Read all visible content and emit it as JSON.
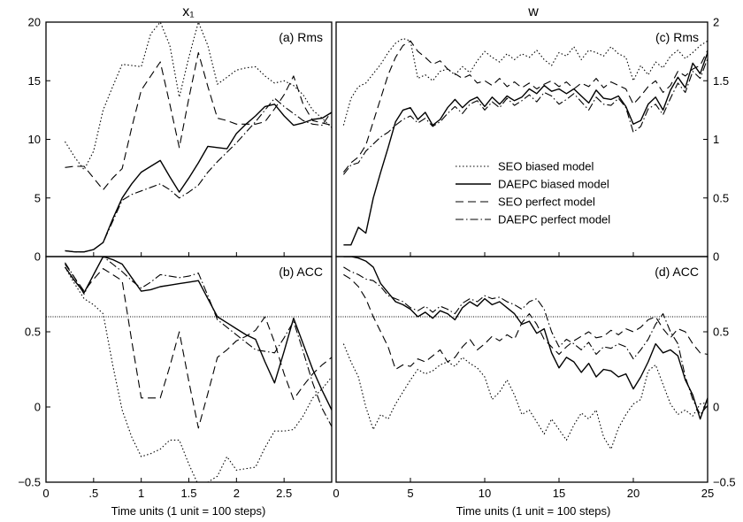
{
  "figure": {
    "left_title": "x₁",
    "right_title": "w",
    "xlabel": "Time units (1 unit = 100 steps)"
  },
  "legend": [
    {
      "name": "SEO biased model",
      "style": "dotted"
    },
    {
      "name": "DAEPC biased model",
      "style": "solid"
    },
    {
      "name": "SEO perfect model",
      "style": "dashed"
    },
    {
      "name": "DAEPC perfect model",
      "style": "dashdot"
    }
  ],
  "chart_data": [
    {
      "type": "line",
      "panel": "(a) Rms",
      "xlim": [
        0,
        3
      ],
      "ylim": [
        0,
        20
      ],
      "xticks": [
        "0",
        ".5",
        "1",
        "1.5",
        "2",
        "2.5"
      ],
      "yticks": [
        "0",
        "5",
        "10",
        "15",
        "20"
      ],
      "x": [
        0.2,
        0.3,
        0.4,
        0.5,
        0.6,
        0.7,
        0.8,
        0.9,
        1.0,
        1.1,
        1.2,
        1.3,
        1.4,
        1.5,
        1.6,
        1.7,
        1.8,
        1.9,
        2.0,
        2.1,
        2.2,
        2.3,
        2.4,
        2.5,
        2.6,
        2.7,
        2.8,
        2.9,
        3.0
      ],
      "series": [
        {
          "name": "SEO biased model",
          "values": [
            9.8,
            8.5,
            7.4,
            9.0,
            12.5,
            14.5,
            16.4,
            16.3,
            16.2,
            19.0,
            20.0,
            18.0,
            13.6,
            17.0,
            20.0,
            18.0,
            14.7,
            15.3,
            15.9,
            16.1,
            16.2,
            15.4,
            14.8,
            15.0,
            14.6,
            13.8,
            12.5,
            11.8,
            11.0
          ]
        },
        {
          "name": "DAEPC biased model",
          "values": [
            0.5,
            0.4,
            0.4,
            0.6,
            1.2,
            3.2,
            5.0,
            6.2,
            7.2,
            7.7,
            8.2,
            6.8,
            5.5,
            6.7,
            8.0,
            9.4,
            9.3,
            9.2,
            10.5,
            11.3,
            12.0,
            12.8,
            13.0,
            12.0,
            11.2,
            11.4,
            11.7,
            11.8,
            12.3
          ]
        },
        {
          "name": "SEO perfect model",
          "values": [
            7.6,
            7.7,
            7.7,
            6.7,
            5.7,
            6.7,
            7.5,
            11.0,
            14.2,
            15.4,
            16.6,
            13.0,
            9.3,
            13.5,
            17.4,
            14.5,
            11.8,
            11.6,
            11.3,
            11.3,
            11.3,
            11.5,
            12.6,
            13.8,
            15.4,
            13.0,
            11.6,
            11.4,
            11.2
          ]
        },
        {
          "name": "DAEPC perfect model",
          "values": [
            0.5,
            0.4,
            0.4,
            0.6,
            1.2,
            3.0,
            4.8,
            5.3,
            5.6,
            5.9,
            6.2,
            5.7,
            5.0,
            5.5,
            6.1,
            7.2,
            8.1,
            8.9,
            9.7,
            10.6,
            11.5,
            12.5,
            13.5,
            12.8,
            12.2,
            11.6,
            11.3,
            11.2,
            12.4
          ]
        }
      ]
    },
    {
      "type": "line",
      "panel": "(b) ACC",
      "xlim": [
        0,
        3
      ],
      "ylim": [
        -0.5,
        1.0
      ],
      "xticks": [
        "0",
        ".5",
        "1",
        "1.5",
        "2",
        "2.5"
      ],
      "yticks": [
        "−0.5",
        "0",
        "0.5"
      ],
      "threshold": 0.6,
      "x": [
        0.2,
        0.3,
        0.4,
        0.5,
        0.6,
        0.7,
        0.8,
        0.9,
        1.0,
        1.1,
        1.2,
        1.3,
        1.4,
        1.5,
        1.6,
        1.7,
        1.8,
        1.9,
        2.0,
        2.1,
        2.2,
        2.3,
        2.4,
        2.5,
        2.6,
        2.7,
        2.8,
        2.9,
        3.0
      ],
      "series": [
        {
          "name": "SEO biased model",
          "values": [
            0.93,
            0.82,
            0.72,
            0.68,
            0.62,
            0.28,
            -0.02,
            -0.2,
            -0.33,
            -0.31,
            -0.28,
            -0.22,
            -0.22,
            -0.38,
            -0.52,
            -0.5,
            -0.46,
            -0.33,
            -0.42,
            -0.41,
            -0.4,
            -0.27,
            -0.16,
            -0.16,
            -0.15,
            -0.06,
            0.06,
            0.12,
            0.2
          ]
        },
        {
          "name": "DAEPC biased model",
          "values": [
            0.93,
            0.84,
            0.76,
            0.88,
            1.0,
            0.98,
            0.95,
            0.86,
            0.77,
            0.78,
            0.8,
            0.81,
            0.82,
            0.83,
            0.84,
            0.72,
            0.6,
            0.56,
            0.52,
            0.48,
            0.45,
            0.3,
            0.16,
            0.37,
            0.59,
            0.42,
            0.25,
            0.11,
            -0.02
          ]
        },
        {
          "name": "SEO perfect model",
          "values": [
            0.95,
            0.86,
            0.77,
            0.85,
            0.92,
            0.88,
            0.84,
            0.44,
            0.06,
            0.06,
            0.06,
            0.27,
            0.5,
            0.17,
            -0.14,
            0.09,
            0.33,
            0.38,
            0.44,
            0.47,
            0.51,
            0.6,
            0.43,
            0.22,
            0.05,
            0.14,
            0.22,
            0.28,
            0.33
          ]
        },
        {
          "name": "DAEPC perfect model",
          "values": [
            0.96,
            0.86,
            0.75,
            0.88,
            1.0,
            0.95,
            0.9,
            0.84,
            0.79,
            0.83,
            0.88,
            0.87,
            0.86,
            0.87,
            0.89,
            0.74,
            0.58,
            0.53,
            0.48,
            0.43,
            0.38,
            0.37,
            0.36,
            0.46,
            0.57,
            0.37,
            0.16,
            -0.01,
            -0.13
          ]
        }
      ]
    },
    {
      "type": "line",
      "panel": "(c) Rms",
      "xlim": [
        0,
        25
      ],
      "ylim": [
        0,
        2
      ],
      "xticks": [
        "0",
        "5",
        "10",
        "15",
        "20",
        "25"
      ],
      "yticks": [
        "0",
        "0.5",
        "1",
        "1.5",
        "2"
      ],
      "x": [
        0.5,
        1,
        1.5,
        2,
        2.5,
        3,
        3.5,
        4,
        4.5,
        5,
        5.5,
        6,
        6.5,
        7,
        7.5,
        8,
        8.5,
        9,
        9.5,
        10,
        10.5,
        11,
        11.5,
        12,
        12.5,
        13,
        13.5,
        14,
        14.5,
        15,
        15.5,
        16,
        16.5,
        17,
        17.5,
        18,
        18.5,
        19,
        19.5,
        20,
        20.5,
        21,
        21.5,
        22,
        22.5,
        23,
        23.5,
        24,
        24.5,
        25
      ],
      "series": [
        {
          "name": "SEO biased model",
          "values": [
            1.12,
            1.35,
            1.45,
            1.48,
            1.56,
            1.64,
            1.74,
            1.82,
            1.86,
            1.84,
            1.52,
            1.55,
            1.5,
            1.58,
            1.6,
            1.55,
            1.62,
            1.57,
            1.67,
            1.75,
            1.7,
            1.66,
            1.73,
            1.68,
            1.73,
            1.7,
            1.76,
            1.68,
            1.63,
            1.74,
            1.71,
            1.79,
            1.68,
            1.76,
            1.74,
            1.71,
            1.79,
            1.73,
            1.7,
            1.5,
            1.63,
            1.55,
            1.66,
            1.61,
            1.71,
            1.76,
            1.69,
            1.74,
            1.8,
            1.84
          ]
        },
        {
          "name": "DAEPC biased model",
          "values": [
            0.1,
            0.1,
            0.25,
            0.2,
            0.5,
            0.72,
            0.93,
            1.15,
            1.25,
            1.27,
            1.17,
            1.23,
            1.12,
            1.17,
            1.27,
            1.34,
            1.27,
            1.33,
            1.36,
            1.28,
            1.36,
            1.3,
            1.37,
            1.33,
            1.36,
            1.43,
            1.39,
            1.46,
            1.41,
            1.43,
            1.39,
            1.43,
            1.37,
            1.31,
            1.42,
            1.35,
            1.34,
            1.37,
            1.28,
            1.13,
            1.16,
            1.3,
            1.36,
            1.25,
            1.42,
            1.53,
            1.44,
            1.65,
            1.56,
            1.74
          ]
        },
        {
          "name": "SEO perfect model",
          "values": [
            0.72,
            0.8,
            0.85,
            0.95,
            1.15,
            1.35,
            1.55,
            1.7,
            1.8,
            1.84,
            1.75,
            1.7,
            1.64,
            1.67,
            1.6,
            1.56,
            1.52,
            1.55,
            1.48,
            1.5,
            1.46,
            1.52,
            1.45,
            1.49,
            1.44,
            1.48,
            1.43,
            1.47,
            1.5,
            1.45,
            1.49,
            1.43,
            1.48,
            1.45,
            1.52,
            1.44,
            1.49,
            1.46,
            1.43,
            1.3,
            1.37,
            1.45,
            1.5,
            1.4,
            1.46,
            1.58,
            1.54,
            1.6,
            1.63,
            1.76
          ]
        },
        {
          "name": "DAEPC perfect model",
          "values": [
            0.7,
            0.78,
            0.8,
            0.9,
            0.96,
            1.02,
            1.06,
            1.12,
            1.17,
            1.2,
            1.14,
            1.18,
            1.11,
            1.15,
            1.22,
            1.28,
            1.22,
            1.3,
            1.33,
            1.25,
            1.32,
            1.27,
            1.35,
            1.29,
            1.33,
            1.38,
            1.32,
            1.4,
            1.37,
            1.3,
            1.34,
            1.39,
            1.32,
            1.25,
            1.36,
            1.3,
            1.29,
            1.35,
            1.27,
            1.06,
            1.11,
            1.26,
            1.3,
            1.21,
            1.35,
            1.48,
            1.4,
            1.58,
            1.52,
            1.69
          ]
        }
      ]
    },
    {
      "type": "line",
      "panel": "(d) ACC",
      "xlim": [
        0,
        25
      ],
      "ylim": [
        -0.5,
        1.0
      ],
      "xticks": [
        "0",
        "5",
        "10",
        "15",
        "20",
        "25"
      ],
      "yticks": [
        "−0.5",
        "0",
        "0.5"
      ],
      "threshold": 0.6,
      "x": [
        0.5,
        1,
        1.5,
        2,
        2.5,
        3,
        3.5,
        4,
        4.5,
        5,
        5.5,
        6,
        6.5,
        7,
        7.5,
        8,
        8.5,
        9,
        9.5,
        10,
        10.5,
        11,
        11.5,
        12,
        12.5,
        13,
        13.5,
        14,
        14.5,
        15,
        15.5,
        16,
        16.5,
        17,
        17.5,
        18,
        18.5,
        19,
        19.5,
        20,
        20.5,
        21,
        21.5,
        22,
        22.5,
        23,
        23.5,
        24,
        24.5,
        25
      ],
      "series": [
        {
          "name": "SEO biased model",
          "values": [
            0.42,
            0.3,
            0.2,
            0.0,
            -0.15,
            -0.05,
            -0.08,
            0.02,
            0.1,
            0.18,
            0.25,
            0.22,
            0.24,
            0.28,
            0.3,
            0.27,
            0.33,
            0.29,
            0.26,
            0.2,
            0.05,
            0.1,
            0.18,
            0.08,
            -0.05,
            -0.02,
            -0.1,
            -0.18,
            -0.08,
            -0.15,
            -0.22,
            -0.12,
            -0.04,
            -0.08,
            -0.02,
            -0.2,
            -0.28,
            -0.14,
            -0.05,
            0.02,
            0.05,
            0.24,
            0.28,
            0.15,
            0.02,
            -0.05,
            -0.02,
            -0.06,
            0.02,
            0.03
          ]
        },
        {
          "name": "DAEPC biased model",
          "values": [
            1.0,
            1.0,
            0.99,
            0.97,
            0.93,
            0.82,
            0.76,
            0.7,
            0.68,
            0.65,
            0.6,
            0.63,
            0.59,
            0.64,
            0.62,
            0.58,
            0.66,
            0.7,
            0.67,
            0.72,
            0.68,
            0.7,
            0.66,
            0.62,
            0.55,
            0.57,
            0.49,
            0.52,
            0.36,
            0.26,
            0.33,
            0.3,
            0.23,
            0.29,
            0.2,
            0.25,
            0.24,
            0.2,
            0.22,
            0.12,
            0.2,
            0.3,
            0.42,
            0.36,
            0.38,
            0.34,
            0.18,
            0.08,
            -0.08,
            0.06
          ]
        },
        {
          "name": "SEO perfect model",
          "values": [
            0.88,
            0.85,
            0.8,
            0.72,
            0.6,
            0.5,
            0.4,
            0.25,
            0.28,
            0.27,
            0.32,
            0.3,
            0.34,
            0.38,
            0.3,
            0.33,
            0.4,
            0.45,
            0.38,
            0.42,
            0.47,
            0.44,
            0.48,
            0.45,
            0.56,
            0.62,
            0.55,
            0.45,
            0.4,
            0.35,
            0.4,
            0.44,
            0.47,
            0.5,
            0.46,
            0.47,
            0.51,
            0.48,
            0.52,
            0.5,
            0.53,
            0.58,
            0.6,
            0.52,
            0.46,
            0.52,
            0.5,
            0.42,
            0.36,
            0.35
          ]
        },
        {
          "name": "DAEPC perfect model",
          "values": [
            0.93,
            0.9,
            0.88,
            0.85,
            0.84,
            0.8,
            0.74,
            0.72,
            0.7,
            0.66,
            0.64,
            0.67,
            0.63,
            0.67,
            0.65,
            0.62,
            0.69,
            0.72,
            0.7,
            0.74,
            0.72,
            0.73,
            0.7,
            0.68,
            0.65,
            0.7,
            0.72,
            0.65,
            0.5,
            0.4,
            0.45,
            0.42,
            0.38,
            0.43,
            0.35,
            0.4,
            0.39,
            0.42,
            0.4,
            0.32,
            0.38,
            0.45,
            0.55,
            0.62,
            0.5,
            0.42,
            0.2,
            0.05,
            -0.05,
            0.01
          ]
        }
      ]
    }
  ]
}
